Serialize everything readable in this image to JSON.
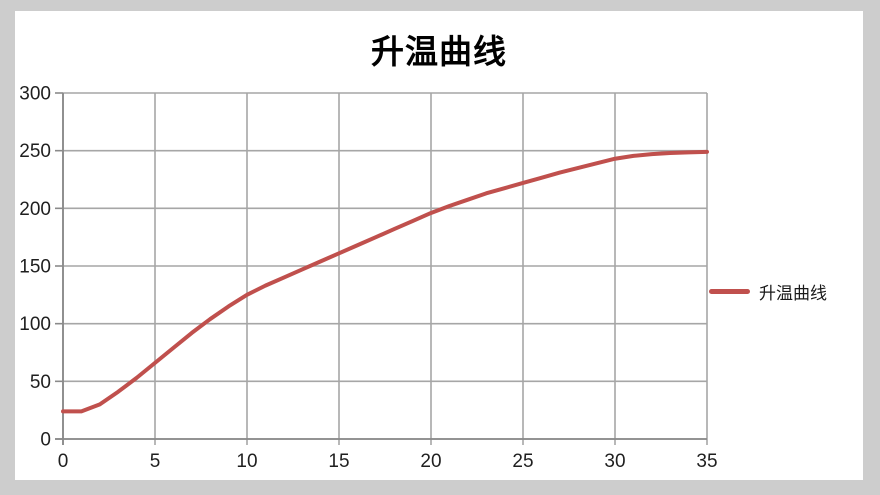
{
  "window": {
    "background_color": "#cdcdcd",
    "chart_background_color": "#ffffff"
  },
  "chart_data": {
    "type": "line",
    "title": "升温曲线",
    "xlabel": "",
    "ylabel": "",
    "xlim": [
      0,
      35
    ],
    "ylim": [
      0,
      300
    ],
    "xticks": [
      0,
      5,
      10,
      15,
      20,
      25,
      30,
      35
    ],
    "yticks": [
      0,
      50,
      100,
      150,
      200,
      250,
      300
    ],
    "grid": true,
    "legend_position": "right",
    "x": [
      0,
      1,
      2,
      3,
      4,
      5,
      6,
      7,
      8,
      9,
      10,
      11,
      12,
      13,
      14,
      15,
      16,
      17,
      18,
      19,
      20,
      21,
      22,
      23,
      24,
      25,
      26,
      27,
      28,
      29,
      30,
      31,
      32,
      33,
      34,
      35
    ],
    "series": [
      {
        "name": "升温曲线",
        "color": "#c0504d",
        "values": [
          24,
          24,
          30,
          41,
          53,
          66,
          79,
          92,
          104,
          115,
          125,
          133,
          140,
          147,
          154,
          161,
          168,
          175,
          182,
          189,
          196,
          202,
          207.5,
          213,
          217.5,
          222,
          226.5,
          231,
          235,
          239,
          243,
          245.5,
          247,
          248,
          248.5,
          249
        ]
      }
    ],
    "colors": {
      "line": "#c0504d",
      "gridline": "#a6a6a6",
      "axis": "#8a8a8a",
      "tick_label": "#1f1f1f",
      "title": "#000000"
    }
  }
}
